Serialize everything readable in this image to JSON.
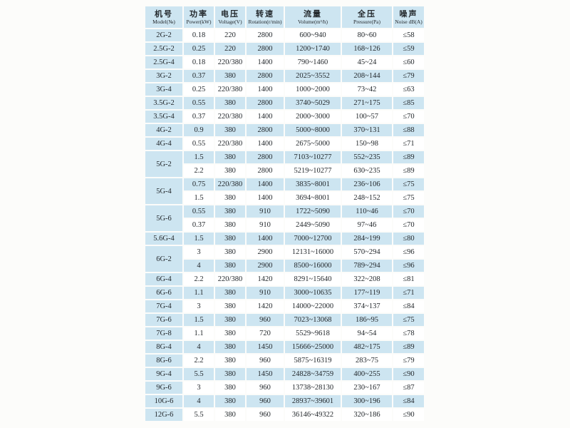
{
  "colors": {
    "row_blue": "#cde5f1",
    "row_white": "#ffffff",
    "text": "#23282c",
    "page_background": "#fcfcfa"
  },
  "table": {
    "columns": [
      {
        "key": "model",
        "zh": "机号",
        "en": "Model(№)"
      },
      {
        "key": "power",
        "zh": "功率",
        "en": "Power(kW)"
      },
      {
        "key": "voltage",
        "zh": "电压",
        "en": "Voltage(V)"
      },
      {
        "key": "rotation",
        "zh": "转速",
        "en": "Rotation(r/min)"
      },
      {
        "key": "volume",
        "zh": "流量",
        "en": "Volume(m³/h)"
      },
      {
        "key": "pressure",
        "zh": "全压",
        "en": "Pressure(Pa)"
      },
      {
        "key": "noise",
        "zh": "噪声",
        "en": "Noise dB(A)"
      }
    ],
    "groups": [
      {
        "model": "2G-2",
        "rows": [
          {
            "power": "0.18",
            "voltage": "220",
            "rotation": "2800",
            "volume": "600~940",
            "pressure": "80~60",
            "noise": "≤58"
          }
        ]
      },
      {
        "model": "2.5G-2",
        "rows": [
          {
            "power": "0.25",
            "voltage": "220",
            "rotation": "2800",
            "volume": "1200~1740",
            "pressure": "168~126",
            "noise": "≤59"
          }
        ]
      },
      {
        "model": "2.5G-4",
        "rows": [
          {
            "power": "0.18",
            "voltage": "220/380",
            "rotation": "1400",
            "volume": "790~1460",
            "pressure": "45~24",
            "noise": "≤60"
          }
        ]
      },
      {
        "model": "3G-2",
        "rows": [
          {
            "power": "0.37",
            "voltage": "380",
            "rotation": "2800",
            "volume": "2025~3552",
            "pressure": "208~144",
            "noise": "≤79"
          }
        ]
      },
      {
        "model": "3G-4",
        "rows": [
          {
            "power": "0.25",
            "voltage": "220/380",
            "rotation": "1400",
            "volume": "1000~2000",
            "pressure": "73~42",
            "noise": "≤63"
          }
        ]
      },
      {
        "model": "3.5G-2",
        "rows": [
          {
            "power": "0.55",
            "voltage": "380",
            "rotation": "2800",
            "volume": "3740~5029",
            "pressure": "271~175",
            "noise": "≤85"
          }
        ]
      },
      {
        "model": "3.5G-4",
        "rows": [
          {
            "power": "0.37",
            "voltage": "220/380",
            "rotation": "1400",
            "volume": "2000~3000",
            "pressure": "100~57",
            "noise": "≤70"
          }
        ]
      },
      {
        "model": "4G-2",
        "rows": [
          {
            "power": "0.9",
            "voltage": "380",
            "rotation": "2800",
            "volume": "5000~8000",
            "pressure": "370~131",
            "noise": "≤88"
          }
        ]
      },
      {
        "model": "4G-4",
        "rows": [
          {
            "power": "0.55",
            "voltage": "220/380",
            "rotation": "1400",
            "volume": "2675~5000",
            "pressure": "150~98",
            "noise": "≤71"
          }
        ]
      },
      {
        "model": "5G-2",
        "rows": [
          {
            "power": "1.5",
            "voltage": "380",
            "rotation": "2800",
            "volume": "7103~10277",
            "pressure": "552~235",
            "noise": "≤89"
          },
          {
            "power": "2.2",
            "voltage": "380",
            "rotation": "2800",
            "volume": "5219~10277",
            "pressure": "630~235",
            "noise": "≤89"
          }
        ]
      },
      {
        "model": "5G-4",
        "rows": [
          {
            "power": "0.75",
            "voltage": "220/380",
            "rotation": "1400",
            "volume": "3835~8001",
            "pressure": "236~106",
            "noise": "≤75"
          },
          {
            "power": "1.5",
            "voltage": "380",
            "rotation": "1400",
            "volume": "3694~8001",
            "pressure": "248~152",
            "noise": "≤75"
          }
        ]
      },
      {
        "model": "5G-6",
        "rows": [
          {
            "power": "0.55",
            "voltage": "380",
            "rotation": "910",
            "volume": "1722~5090",
            "pressure": "110~46",
            "noise": "≤70"
          },
          {
            "power": "0.37",
            "voltage": "380",
            "rotation": "910",
            "volume": "2449~5090",
            "pressure": "97~46",
            "noise": "≤70"
          }
        ]
      },
      {
        "model": "5.6G-4",
        "rows": [
          {
            "power": "1.5",
            "voltage": "380",
            "rotation": "1400",
            "volume": "7000~12700",
            "pressure": "284~199",
            "noise": "≤80"
          }
        ]
      },
      {
        "model": "6G-2",
        "rows": [
          {
            "power": "3",
            "voltage": "380",
            "rotation": "2900",
            "volume": "12131~16000",
            "pressure": "570~294",
            "noise": "≤96"
          },
          {
            "power": "4",
            "voltage": "380",
            "rotation": "2900",
            "volume": "8500~16000",
            "pressure": "789~294",
            "noise": "≤96"
          }
        ]
      },
      {
        "model": "6G-4",
        "rows": [
          {
            "power": "2.2",
            "voltage": "220/380",
            "rotation": "1420",
            "volume": "8291~15640",
            "pressure": "322~208",
            "noise": "≤81"
          }
        ]
      },
      {
        "model": "6G-6",
        "rows": [
          {
            "power": "1.1",
            "voltage": "380",
            "rotation": "910",
            "volume": "3000~10635",
            "pressure": "177~119",
            "noise": "≤71"
          }
        ]
      },
      {
        "model": "7G-4",
        "rows": [
          {
            "power": "3",
            "voltage": "380",
            "rotation": "1420",
            "volume": "14000~22000",
            "pressure": "374~137",
            "noise": "≤84"
          }
        ]
      },
      {
        "model": "7G-6",
        "rows": [
          {
            "power": "1.5",
            "voltage": "380",
            "rotation": "960",
            "volume": "7023~13068",
            "pressure": "186~95",
            "noise": "≤75"
          }
        ]
      },
      {
        "model": "7G-8",
        "rows": [
          {
            "power": "1.1",
            "voltage": "380",
            "rotation": "720",
            "volume": "5529~9618",
            "pressure": "94~54",
            "noise": "≤78"
          }
        ]
      },
      {
        "model": "8G-4",
        "rows": [
          {
            "power": "4",
            "voltage": "380",
            "rotation": "1450",
            "volume": "15666~25000",
            "pressure": "482~175",
            "noise": "≤89"
          }
        ]
      },
      {
        "model": "8G-6",
        "rows": [
          {
            "power": "2.2",
            "voltage": "380",
            "rotation": "960",
            "volume": "5875~16319",
            "pressure": "283~75",
            "noise": "≤79"
          }
        ]
      },
      {
        "model": "9G-4",
        "rows": [
          {
            "power": "5.5",
            "voltage": "380",
            "rotation": "1450",
            "volume": "24828~34759",
            "pressure": "400~255",
            "noise": "≤90"
          }
        ]
      },
      {
        "model": "9G-6",
        "rows": [
          {
            "power": "3",
            "voltage": "380",
            "rotation": "960",
            "volume": "13738~28130",
            "pressure": "230~167",
            "noise": "≤87"
          }
        ]
      },
      {
        "model": "10G-6",
        "rows": [
          {
            "power": "4",
            "voltage": "380",
            "rotation": "960",
            "volume": "28937~39601",
            "pressure": "300~196",
            "noise": "≤84"
          }
        ]
      },
      {
        "model": "12G-6",
        "rows": [
          {
            "power": "5.5",
            "voltage": "380",
            "rotation": "960",
            "volume": "36146~49322",
            "pressure": "320~186",
            "noise": "≤90"
          }
        ]
      }
    ]
  }
}
